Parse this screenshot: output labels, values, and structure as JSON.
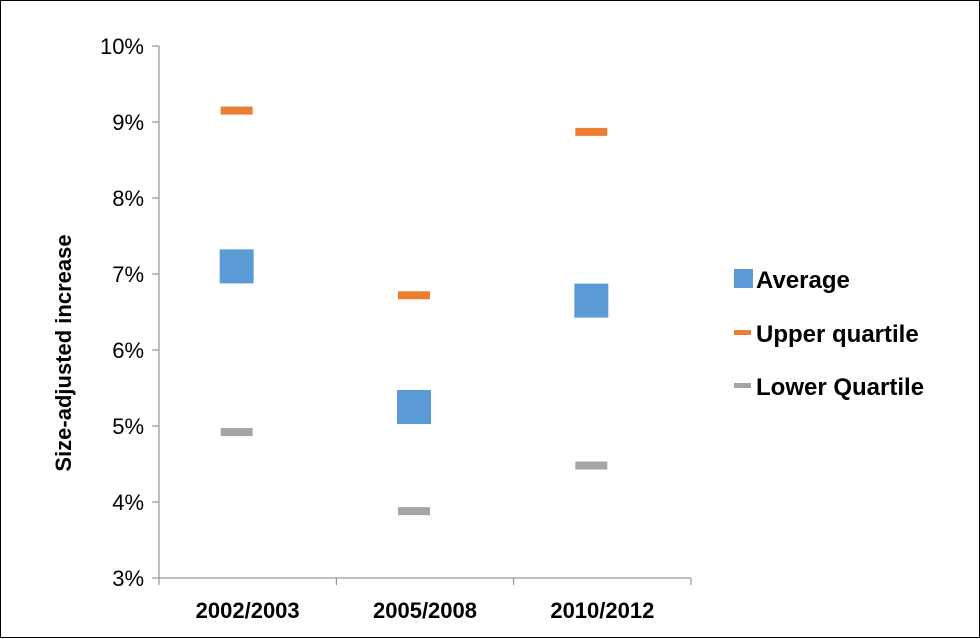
{
  "chart_data": {
    "type": "scatter",
    "title": "",
    "xlabel": "",
    "ylabel": "Size-adjusted increase",
    "categories": [
      "2002/2003",
      "2005/2008",
      "2010/2012"
    ],
    "ylim": [
      3,
      10
    ],
    "yticks": [
      "3%",
      "4%",
      "5%",
      "6%",
      "7%",
      "8%",
      "9%",
      "10%"
    ],
    "grid": false,
    "legend_position": "right",
    "series": [
      {
        "name": "Average",
        "marker": "square",
        "color": "#5B9BD5",
        "values": [
          7.1,
          5.25,
          6.65
        ]
      },
      {
        "name": "Upper quartile",
        "marker": "dash",
        "color": "#ED7D31",
        "values": [
          9.15,
          6.72,
          8.87
        ]
      },
      {
        "name": "Lower Quartile",
        "marker": "dash",
        "color": "#A5A5A5",
        "values": [
          4.92,
          3.88,
          4.48
        ]
      }
    ]
  }
}
